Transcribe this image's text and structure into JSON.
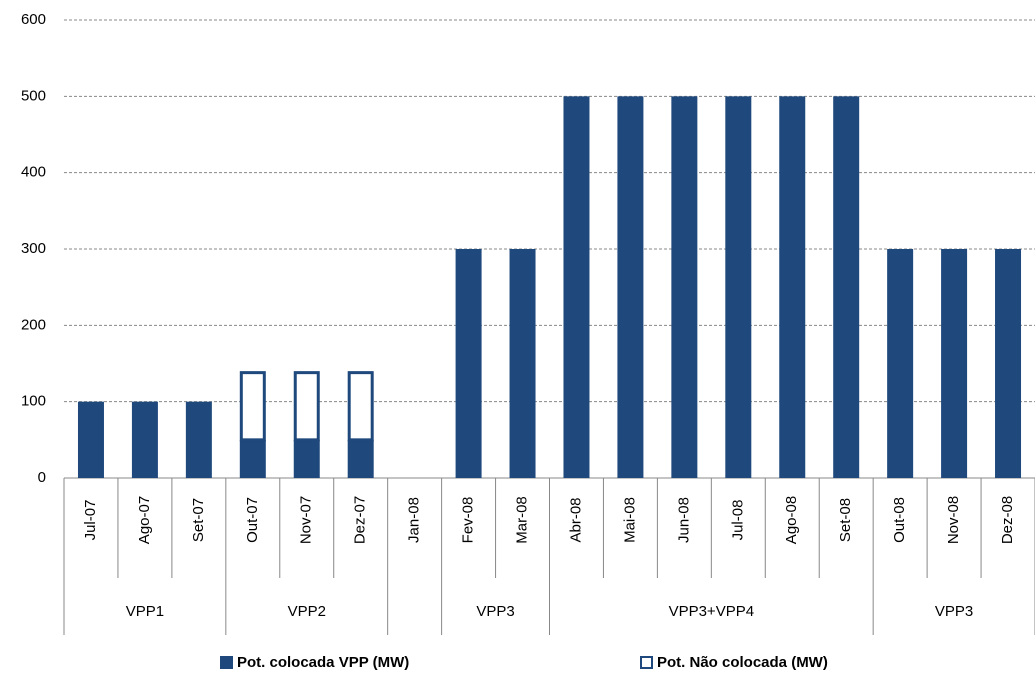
{
  "chart_data": {
    "type": "stacked_bar",
    "categories": [
      "Jul-07",
      "Ago-07",
      "Set-07",
      "Out-07",
      "Nov-07",
      "Dez-07",
      "Jan-08",
      "Fev-08",
      "Mar-08",
      "Abr-08",
      "Mai-08",
      "Jun-08",
      "Jul-08",
      "Ago-08",
      "Set-08",
      "Out-08",
      "Nov-08",
      "Dez-08"
    ],
    "groups": [
      "VPP1",
      "VPP1",
      "VPP1",
      "VPP2",
      "VPP2",
      "VPP2",
      null,
      "VPP3",
      "VPP3",
      "VPP3+VPP4",
      "VPP3+VPP4",
      "VPP3+VPP4",
      "VPP3+VPP4",
      "VPP3+VPP4",
      "VPP3+VPP4",
      "VPP3",
      "VPP3",
      "VPP3"
    ],
    "series": [
      {
        "name": "Pot. colocada VPP (MW)",
        "color": "#1f497d",
        "values": [
          100,
          100,
          100,
          50,
          50,
          50,
          0,
          300,
          300,
          500,
          500,
          500,
          500,
          500,
          500,
          300,
          300,
          300
        ]
      },
      {
        "name": "Pot. Não colocada (MW)",
        "color": "#ffffff",
        "values": [
          0,
          0,
          0,
          90,
          90,
          90,
          0,
          0,
          0,
          0,
          0,
          0,
          0,
          0,
          0,
          0,
          0,
          0
        ]
      }
    ],
    "ylim": [
      0,
      600
    ],
    "yticks": [
      0,
      100,
      200,
      300,
      400,
      500,
      600
    ],
    "grid": true,
    "legend": "bottom"
  }
}
